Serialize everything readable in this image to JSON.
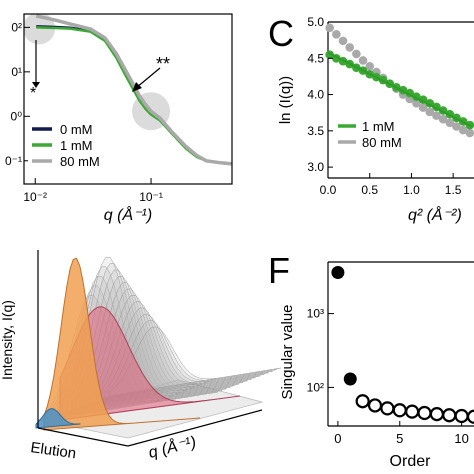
{
  "panel_labels": {
    "c": "C",
    "f": "F"
  },
  "chart_data": [
    {
      "id": "saxs",
      "type": "line",
      "xlabel": "q (Å⁻¹)",
      "xscale": "log",
      "yscale": "log",
      "xlim": [
        0.008,
        0.5
      ],
      "ylim": [
        0.03,
        200
      ],
      "xticks": [
        {
          "value": 0.01,
          "label": "10⁻²"
        },
        {
          "value": 0.1,
          "label": "10⁻¹"
        }
      ],
      "yticks": [
        {
          "value": 100,
          "label": "0²"
        },
        {
          "value": 10,
          "label": "0¹"
        },
        {
          "value": 1,
          "label": "0⁰"
        },
        {
          "value": 0.1,
          "label": "0⁻¹"
        }
      ],
      "annotations": [
        {
          "text": "*",
          "x": 0.0106,
          "y": 100
        },
        {
          "text": "**",
          "x": 0.108,
          "y": 1.6
        }
      ],
      "series": [
        {
          "name": "0 mM",
          "color": "#141a4e",
          "x": [
            0.0102,
            0.012,
            0.015,
            0.02,
            0.03,
            0.04,
            0.05,
            0.06,
            0.07,
            0.08,
            0.09,
            0.1,
            0.12,
            0.15,
            0.2,
            0.25,
            0.3,
            0.4,
            0.5
          ],
          "y": [
            105,
            104,
            102,
            98,
            84,
            52,
            22,
            8.8,
            4.2,
            2.3,
            1.5,
            1.15,
            0.82,
            0.43,
            0.2,
            0.13,
            0.1,
            0.09,
            0.085
          ]
        },
        {
          "name": "1 mM",
          "color": "#3aa832",
          "x": [
            0.0102,
            0.012,
            0.015,
            0.02,
            0.03,
            0.04,
            0.05,
            0.06,
            0.07,
            0.08,
            0.09,
            0.1,
            0.12,
            0.15,
            0.2,
            0.25,
            0.3,
            0.4,
            0.5
          ],
          "y": [
            100,
            99,
            97,
            94,
            80,
            50,
            21,
            8.5,
            4.1,
            2.2,
            1.45,
            1.1,
            0.8,
            0.42,
            0.19,
            0.12,
            0.1,
            0.09,
            0.085
          ]
        },
        {
          "name": "80 mM",
          "color": "#a9a9a9",
          "x": [
            0.0102,
            0.012,
            0.015,
            0.02,
            0.03,
            0.04,
            0.05,
            0.06,
            0.07,
            0.08,
            0.09,
            0.1,
            0.12,
            0.15,
            0.2,
            0.25,
            0.3,
            0.4,
            0.5
          ],
          "y": [
            180,
            165,
            145,
            120,
            92,
            58,
            26,
            11,
            5.3,
            2.8,
            1.8,
            1.3,
            0.9,
            0.46,
            0.21,
            0.13,
            0.1,
            0.09,
            0.085
          ]
        }
      ]
    },
    {
      "id": "guinier",
      "type": "scatter",
      "xlabel": "q² (Å⁻²)",
      "ylabel": "ln (I(q))",
      "xlim": [
        0,
        1.75
      ],
      "ylim": [
        2.85,
        5.0
      ],
      "xticks": [
        {
          "value": 0,
          "label": "0.0"
        },
        {
          "value": 0.5,
          "label": "0.5"
        },
        {
          "value": 1.0,
          "label": "1.0"
        },
        {
          "value": 1.5,
          "label": "1.5"
        }
      ],
      "yticks": [
        {
          "value": 3.0,
          "label": "3.0"
        },
        {
          "value": 3.5,
          "label": "3.5"
        },
        {
          "value": 4.0,
          "label": "4.0"
        },
        {
          "value": 4.5,
          "label": "4.5"
        },
        {
          "value": 5.0,
          "label": "5.0"
        }
      ],
      "series": [
        {
          "name": "1 mM",
          "color": "#3aa832",
          "x": [
            0.02,
            0.1,
            0.18,
            0.26,
            0.34,
            0.42,
            0.5,
            0.58,
            0.66,
            0.74,
            0.82,
            0.9,
            0.98,
            1.06,
            1.14,
            1.22,
            1.3,
            1.38,
            1.46,
            1.54,
            1.62,
            1.7
          ],
          "y": [
            4.55,
            4.5,
            4.46,
            4.42,
            4.37,
            4.33,
            4.28,
            4.24,
            4.2,
            4.15,
            4.1,
            4.06,
            4.02,
            3.97,
            3.93,
            3.88,
            3.83,
            3.78,
            3.73,
            3.68,
            3.63,
            3.58
          ],
          "fit": [
            [
              0,
              4.58
            ],
            [
              1.72,
              3.56
            ]
          ]
        },
        {
          "name": "80 mM",
          "color": "#a9a9a9",
          "x": [
            0.02,
            0.1,
            0.18,
            0.26,
            0.34,
            0.42,
            0.5,
            0.58,
            0.66,
            0.74,
            0.82,
            0.9,
            0.98,
            1.06,
            1.14,
            1.22,
            1.3,
            1.38,
            1.46,
            1.54,
            1.62,
            1.7
          ],
          "y": [
            4.92,
            4.83,
            4.74,
            4.65,
            4.56,
            4.47,
            4.39,
            4.31,
            4.23,
            4.15,
            4.08,
            4.0,
            3.94,
            3.88,
            3.82,
            3.76,
            3.71,
            3.66,
            3.61,
            3.56,
            3.51,
            3.47
          ]
        }
      ]
    },
    {
      "id": "elution3d",
      "type": "area",
      "xlabel": "q (Å⁻¹)",
      "ylabel": "Intensity, I(q)",
      "zlabel": "Elution",
      "colors": {
        "orange": "#f0a050",
        "red": "#e0607a",
        "blue": "#4a90c8",
        "gray": "#b8b8b8"
      }
    },
    {
      "id": "svd",
      "type": "scatter",
      "xlabel": "Order",
      "ylabel": "Singular value",
      "yscale": "log",
      "xlim": [
        -0.8,
        11
      ],
      "ylim": [
        30,
        5000
      ],
      "xticks": [
        {
          "value": 0,
          "label": "0"
        },
        {
          "value": 5,
          "label": "5"
        },
        {
          "value": 10,
          "label": "10"
        }
      ],
      "yticks": [
        {
          "value": 1000,
          "label": "10³"
        },
        {
          "value": 100,
          "label": "10²"
        }
      ],
      "filled": [
        {
          "x": 0,
          "y": 3600
        },
        {
          "x": 1,
          "y": 130
        }
      ],
      "open": [
        {
          "x": 2,
          "y": 65
        },
        {
          "x": 3,
          "y": 57
        },
        {
          "x": 4,
          "y": 52
        },
        {
          "x": 5,
          "y": 49
        },
        {
          "x": 6,
          "y": 47
        },
        {
          "x": 7,
          "y": 45
        },
        {
          "x": 8,
          "y": 43.5
        },
        {
          "x": 9,
          "y": 42
        },
        {
          "x": 10,
          "y": 41
        },
        {
          "x": 11,
          "y": 40
        }
      ]
    }
  ]
}
